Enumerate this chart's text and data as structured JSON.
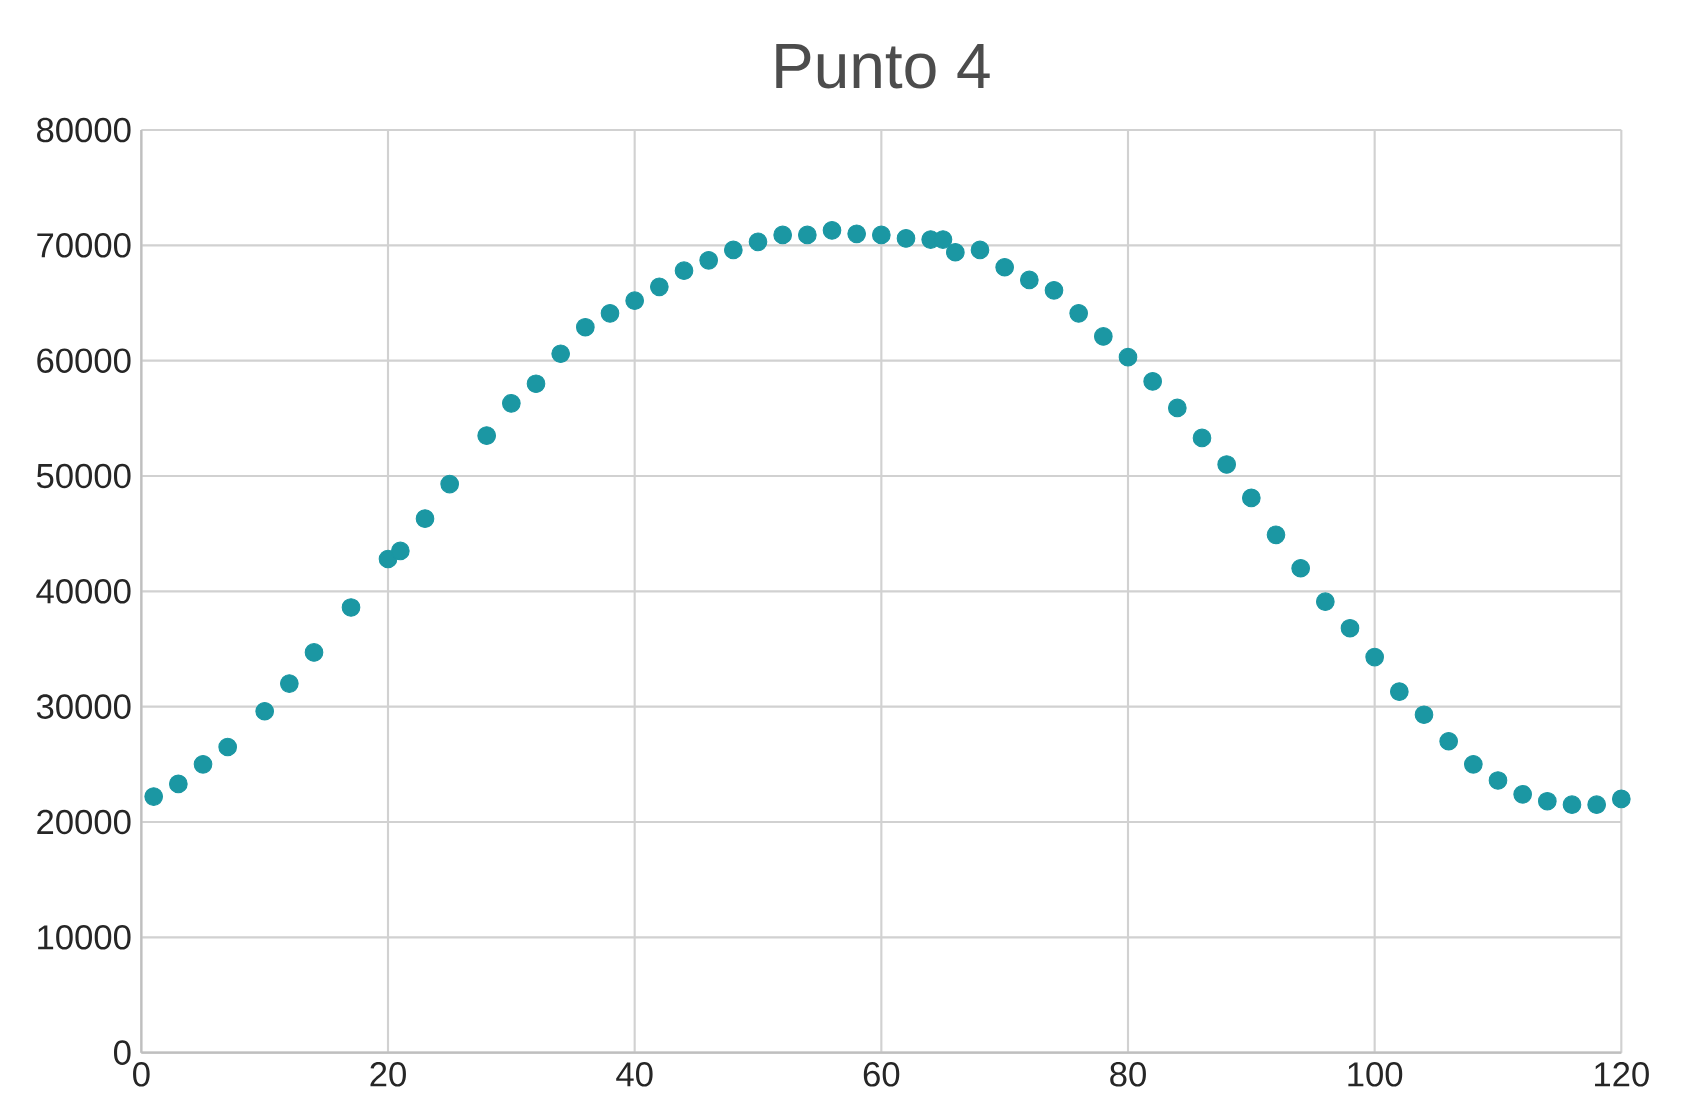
{
  "chart_data": {
    "type": "scatter",
    "title": "Punto 4",
    "marker": "circle",
    "grid": true,
    "color": "#1b97a3",
    "xlim": [
      0,
      120
    ],
    "xticks": [
      0,
      20,
      40,
      60,
      80,
      100,
      120
    ],
    "ylim": [
      0,
      80000
    ],
    "yticks": [
      0,
      10000,
      20000,
      30000,
      40000,
      50000,
      60000,
      70000,
      80000
    ],
    "x": [
      1,
      3,
      5,
      7,
      10,
      12,
      14,
      17,
      20,
      21,
      23,
      25,
      28,
      30,
      32,
      34,
      36,
      38,
      40,
      42,
      44,
      46,
      48,
      50,
      52,
      54,
      56,
      58,
      60,
      62,
      64,
      65,
      66,
      68,
      70,
      72,
      74,
      76,
      78,
      80,
      82,
      84,
      86,
      88,
      90,
      92,
      94,
      96,
      98,
      100,
      102,
      104,
      106,
      108,
      110,
      112,
      114,
      116,
      118,
      120
    ],
    "values": [
      22200,
      23300,
      25000,
      26500,
      29600,
      32000,
      34700,
      38600,
      42800,
      43500,
      46300,
      49300,
      53500,
      56300,
      58000,
      60600,
      62900,
      64100,
      65200,
      66400,
      67800,
      68700,
      69600,
      70300,
      70900,
      70900,
      71300,
      71000,
      70900,
      70600,
      70500,
      70500,
      69400,
      69600,
      68100,
      67000,
      66100,
      64100,
      62100,
      60300,
      58200,
      55900,
      53300,
      51000,
      48100,
      44900,
      42000,
      39100,
      36800,
      34300,
      31300,
      29300,
      27000,
      25000,
      23600,
      22400,
      21800,
      21500,
      21500,
      22000
    ]
  }
}
